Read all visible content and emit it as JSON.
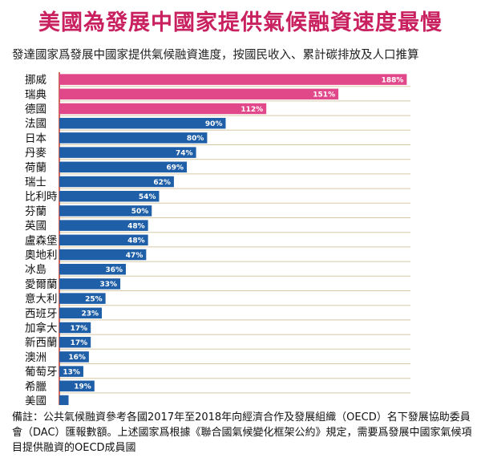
{
  "title": "美國為發展中國家提供氣候融資速度最慢",
  "subtitle": "發達國家爲發展中國家提供氣候融資進度，按國民收入、累計碳排放及人口推算",
  "note": "備註：公共氣候融資參考各國2017年至2018年向經濟合作及發展組織（OECD）名下發展協助委員會（DAC）匯報數額。上述國家爲根據《聯合國氣候變化框架公約》規定，需要爲發展中國家氣候項目提供融資的OECD成員國",
  "colors": {
    "highlight": "#e1488a",
    "bar": "#1f5fa8",
    "title": "#c9215f",
    "axis": "#c0392b"
  },
  "chart_data": {
    "type": "bar",
    "orientation": "horizontal",
    "grid": true,
    "categories": [
      "挪威",
      "瑞典",
      "德國",
      "法國",
      "日本",
      "丹麥",
      "荷蘭",
      "瑞士",
      "比利時",
      "芬蘭",
      "英國",
      "盧森堡",
      "奧地利",
      "冰島",
      "愛爾蘭",
      "意大利",
      "西班牙",
      "加拿大",
      "新西蘭",
      "澳洲",
      "葡萄牙",
      "希臘",
      "美國"
    ],
    "values": [
      188,
      151,
      112,
      90,
      80,
      74,
      69,
      62,
      54,
      50,
      48,
      48,
      47,
      36,
      33,
      25,
      23,
      17,
      17,
      16,
      13,
      19,
      5
    ],
    "labels": [
      "188%",
      "151%",
      "112%",
      "90%",
      "80%",
      "74%",
      "69%",
      "62%",
      "54%",
      "50%",
      "48%",
      "48%",
      "47%",
      "36%",
      "33%",
      "25%",
      "23%",
      "17%",
      "17%",
      "16%",
      "13%",
      "19%",
      ""
    ],
    "highlight_count": 3
  }
}
